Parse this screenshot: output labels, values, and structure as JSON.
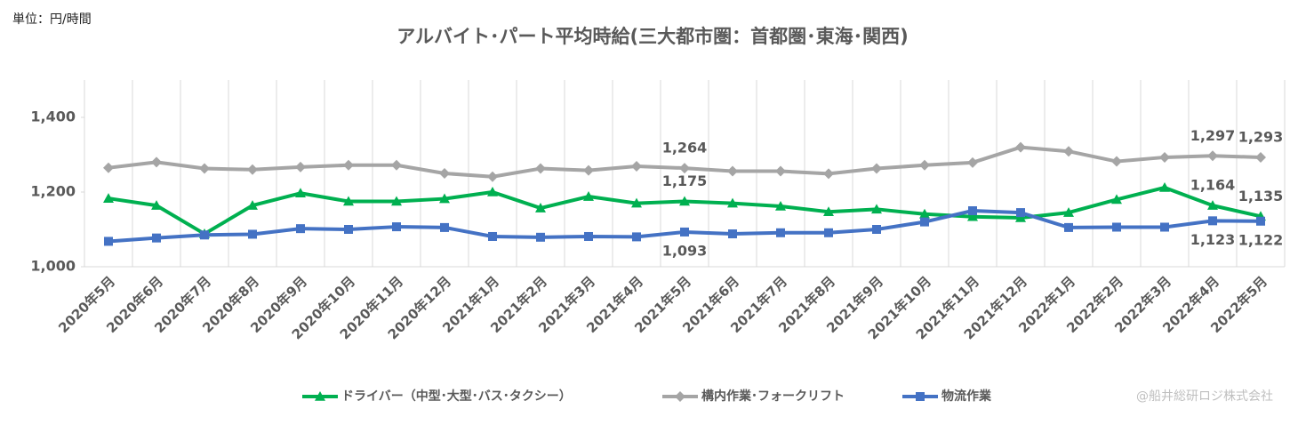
{
  "chart_data": {
    "type": "line",
    "title": "アルバイト･パート平均時給(三大都市圏：首都圏･東海･関西)",
    "unit_note": "単位：円/時間",
    "credit": "@船井総研ロジ株式会社",
    "categories": [
      "2020年5月",
      "2020年6月",
      "2020年7月",
      "2020年8月",
      "2020年9月",
      "2020年10月",
      "2020年11月",
      "2020年12月",
      "2021年1月",
      "2021年2月",
      "2021年3月",
      "2021年4月",
      "2021年5月",
      "2021年6月",
      "2021年7月",
      "2021年8月",
      "2021年9月",
      "2021年10月",
      "2021年11月",
      "2021年12月",
      "2022年1月",
      "2022年2月",
      "2022年3月",
      "2022年4月",
      "2022年5月"
    ],
    "series": [
      {
        "name": "ドライバー（中型･大型･バス･タクシー）",
        "color": "#00b050",
        "marker": "triangle",
        "values": [
          1183,
          1164,
          1088,
          1164,
          1197,
          1175,
          1175,
          1182,
          1200,
          1157,
          1188,
          1170,
          1175,
          1170,
          1162,
          1147,
          1154,
          1141,
          1134,
          1131,
          1145,
          1180,
          1212,
          1164,
          1135
        ],
        "value_labels": [
          null,
          null,
          null,
          null,
          null,
          null,
          null,
          null,
          null,
          null,
          null,
          null,
          "1,175",
          null,
          null,
          null,
          null,
          null,
          null,
          null,
          null,
          null,
          null,
          "1,164",
          "1,135"
        ]
      },
      {
        "name": "構内作業･フォークリフト",
        "color": "#a5a5a5",
        "marker": "diamond",
        "values": [
          1265,
          1280,
          1263,
          1260,
          1267,
          1272,
          1272,
          1250,
          1241,
          1263,
          1258,
          1269,
          1264,
          1256,
          1256,
          1249,
          1263,
          1272,
          1279,
          1320,
          1309,
          1282,
          1293,
          1297,
          1293
        ],
        "value_labels": [
          null,
          null,
          null,
          null,
          null,
          null,
          null,
          null,
          null,
          null,
          null,
          null,
          "1,264",
          null,
          null,
          null,
          null,
          null,
          null,
          null,
          null,
          null,
          null,
          "1,297",
          "1,293"
        ]
      },
      {
        "name": "物流作業",
        "color": "#4472c4",
        "marker": "square",
        "values": [
          1068,
          1077,
          1085,
          1087,
          1102,
          1100,
          1107,
          1105,
          1081,
          1079,
          1081,
          1080,
          1093,
          1088,
          1091,
          1091,
          1100,
          1120,
          1150,
          1145,
          1105,
          1106,
          1106,
          1123,
          1122
        ],
        "value_labels": [
          null,
          null,
          null,
          null,
          null,
          null,
          null,
          null,
          null,
          null,
          null,
          null,
          "1,093",
          null,
          null,
          null,
          null,
          null,
          null,
          null,
          null,
          null,
          null,
          "1,123",
          "1,122"
        ]
      }
    ],
    "ylim": [
      1000,
      1500
    ],
    "yticks": [
      {
        "value": 1000,
        "label": "1,000"
      },
      {
        "value": 1200,
        "label": "1,200"
      },
      {
        "value": 1400,
        "label": "1,400"
      }
    ],
    "grid": true
  }
}
